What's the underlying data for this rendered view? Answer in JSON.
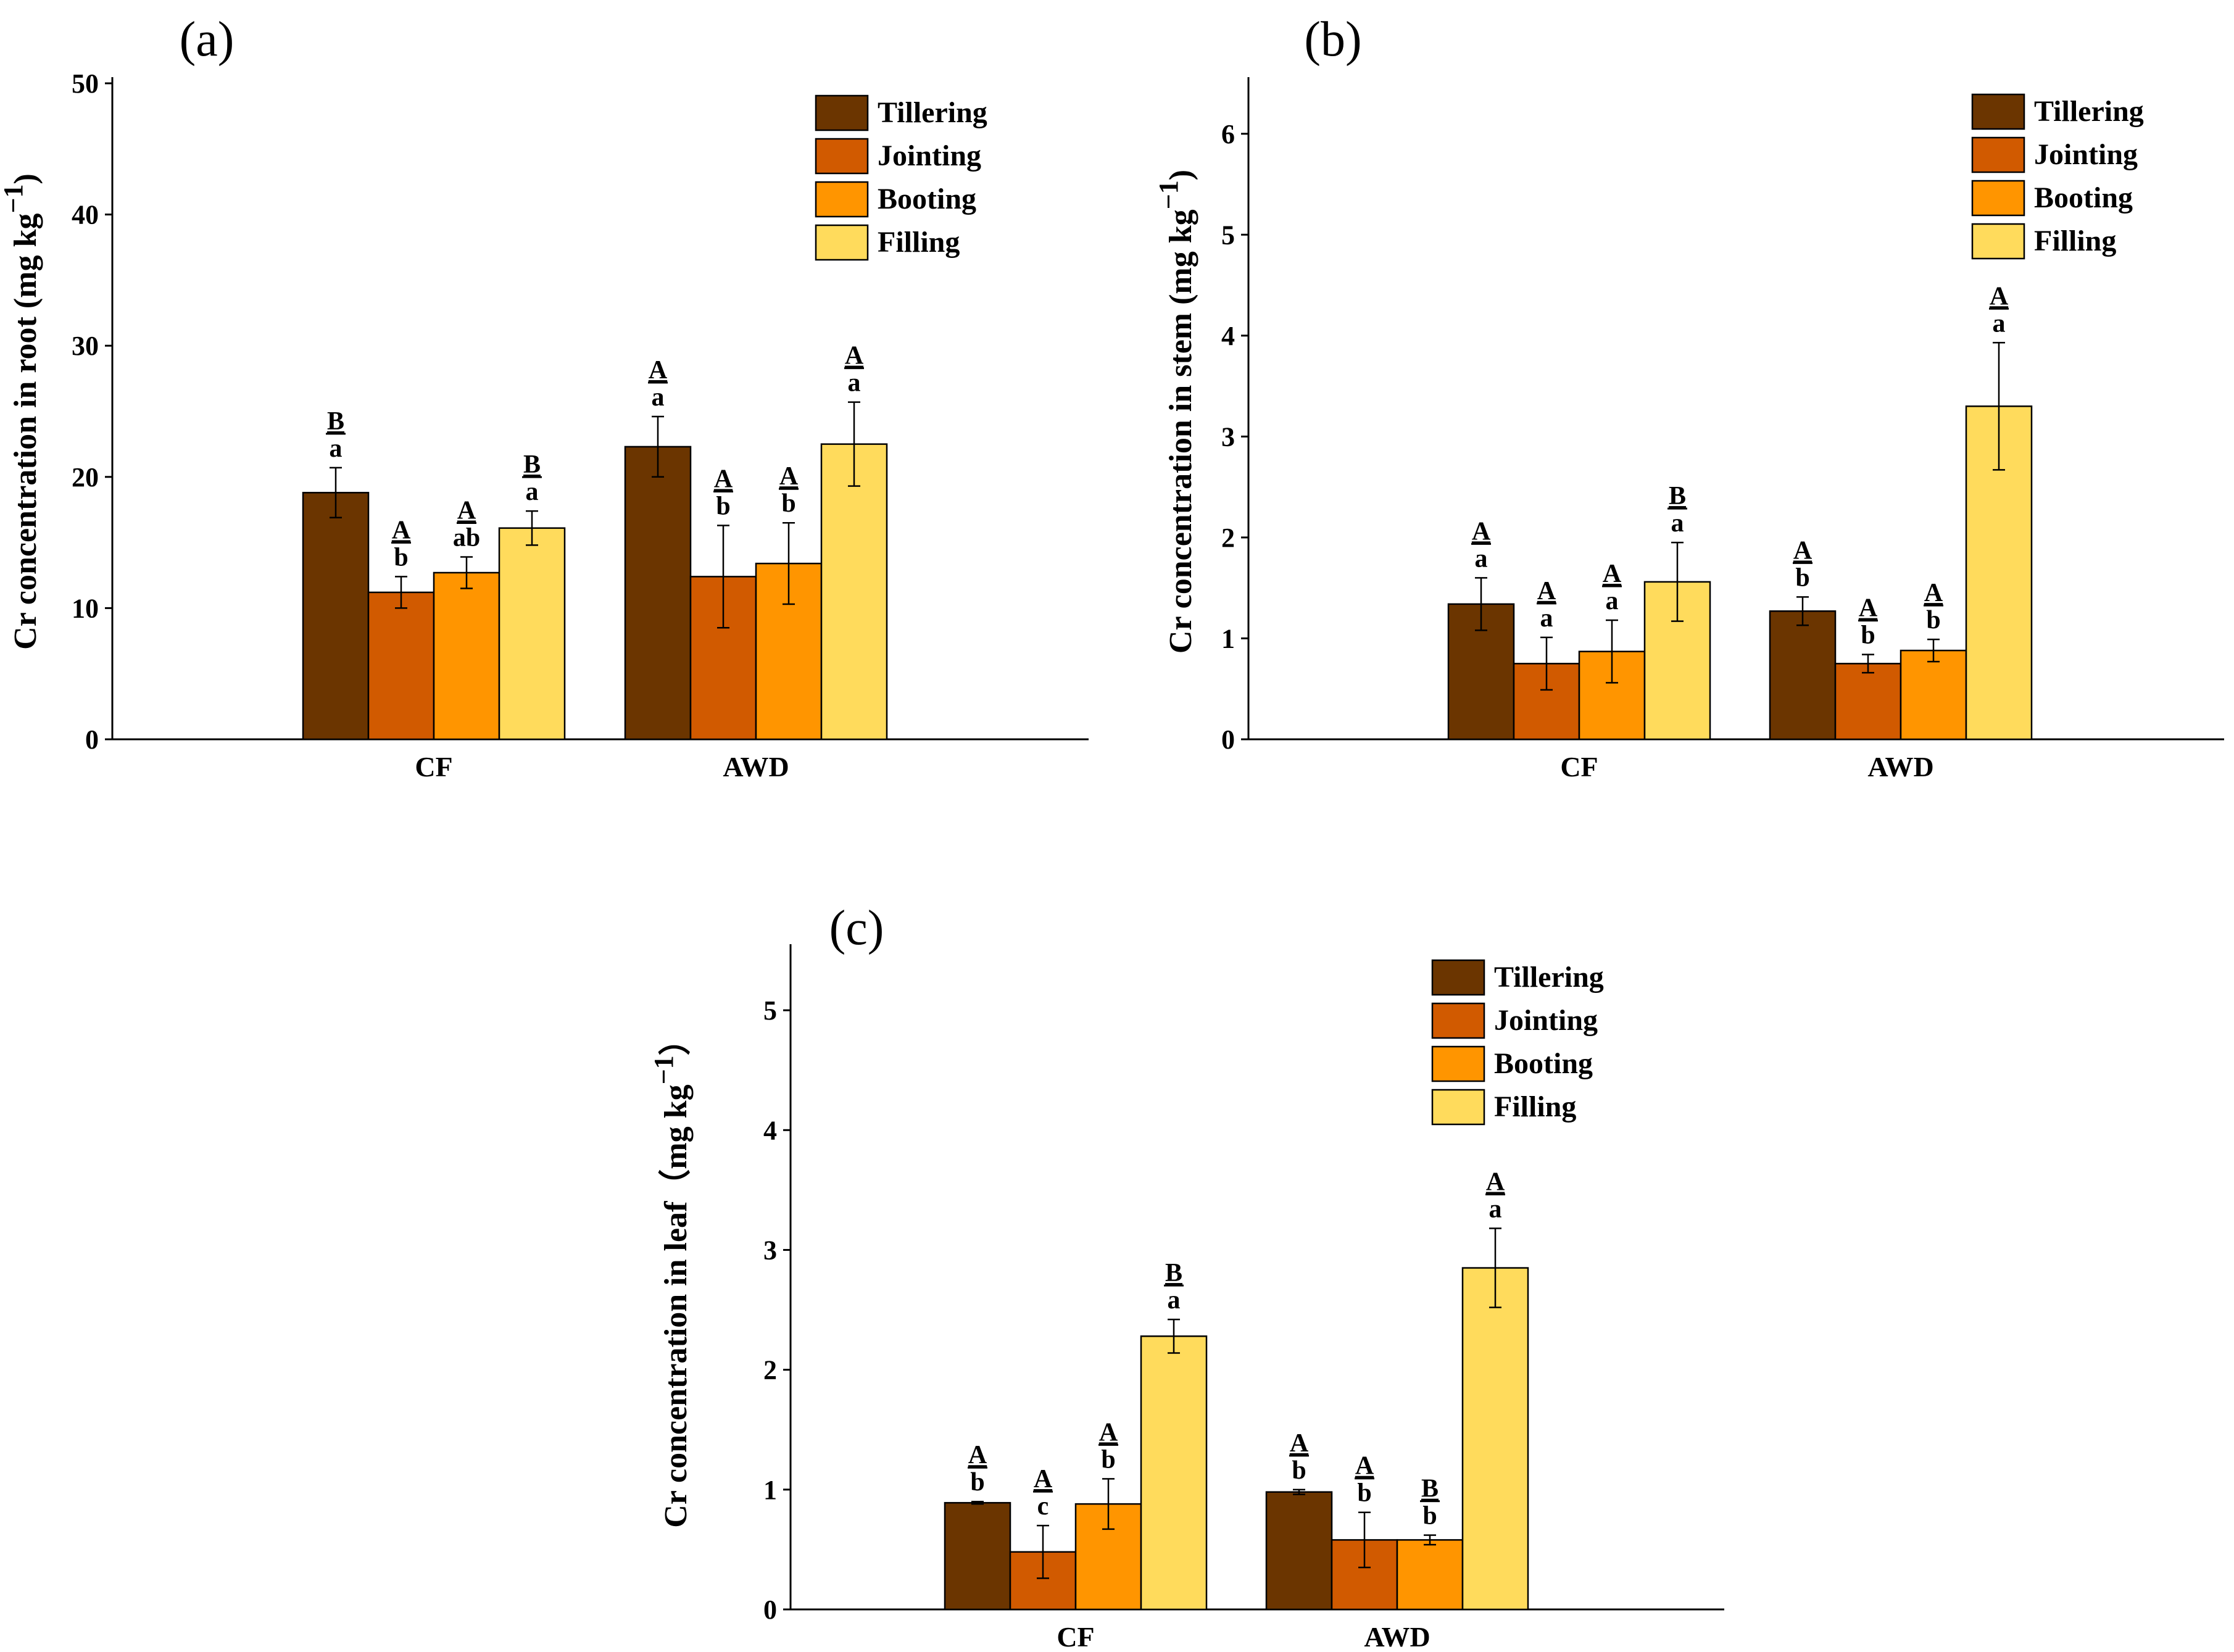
{
  "figure": {
    "panels_order": [
      "a",
      "b",
      "c"
    ]
  },
  "colors": {
    "Tillering": "#6B3500",
    "Jointing": "#D15A00",
    "Booting": "#FF9500",
    "Filling": "#FFDB5C",
    "axis": "#000000"
  },
  "chart_data": [
    {
      "type": "bar",
      "panel_tag": "(a)",
      "ylabel": "Cr concentration in root (mg kg⁻¹)",
      "ylabel_main": "Cr concentration in root (mg kg",
      "ylabel_sup": "−1",
      "ylabel_close": ")",
      "xlabel": "",
      "categories": [
        "CF",
        "AWD"
      ],
      "ylim": [
        0,
        50
      ],
      "yticks": [
        "0",
        "10",
        "20",
        "30",
        "40",
        "50"
      ],
      "legend": [
        "Tillering",
        "Jointing",
        "Booting",
        "Filling"
      ],
      "legend_position": "top-right",
      "series": [
        {
          "name": "Tillering",
          "values": [
            18.8,
            22.3
          ],
          "errors": [
            1.9,
            2.3
          ],
          "upper_letters": [
            "B",
            "A"
          ],
          "lower_letters": [
            "a",
            "a"
          ]
        },
        {
          "name": "Jointing",
          "values": [
            11.2,
            12.4
          ],
          "errors": [
            1.2,
            3.9
          ],
          "upper_letters": [
            "A",
            "A"
          ],
          "lower_letters": [
            "b",
            "b"
          ]
        },
        {
          "name": "Booting",
          "values": [
            12.7,
            13.4
          ],
          "errors": [
            1.2,
            3.1
          ],
          "upper_letters": [
            "A",
            "A"
          ],
          "lower_letters": [
            "ab",
            "b"
          ]
        },
        {
          "name": "Filling",
          "values": [
            16.1,
            22.5
          ],
          "errors": [
            1.3,
            3.2
          ],
          "upper_letters": [
            "B",
            "A"
          ],
          "lower_letters": [
            "a",
            "a"
          ]
        }
      ]
    },
    {
      "type": "bar",
      "panel_tag": "(b)",
      "ylabel": "Cr concentration in stem (mg kg⁻¹)",
      "ylabel_main": "Cr concentration in stem (mg kg",
      "ylabel_sup": "−1",
      "ylabel_close": ")",
      "xlabel": "",
      "categories": [
        "CF",
        "AWD"
      ],
      "ylim": [
        0,
        6.5
      ],
      "yticks": [
        "0",
        "1",
        "2",
        "3",
        "4",
        "5",
        "6"
      ],
      "legend": [
        "Tillering",
        "Jointing",
        "Booting",
        "Filling"
      ],
      "legend_position": "top-right",
      "series": [
        {
          "name": "Tillering",
          "values": [
            1.34,
            1.27
          ],
          "errors": [
            0.26,
            0.14
          ],
          "upper_letters": [
            "A",
            "A"
          ],
          "lower_letters": [
            "a",
            "b"
          ]
        },
        {
          "name": "Jointing",
          "values": [
            0.75,
            0.75
          ],
          "errors": [
            0.26,
            0.09
          ],
          "upper_letters": [
            "A",
            "A"
          ],
          "lower_letters": [
            "a",
            "b"
          ]
        },
        {
          "name": "Booting",
          "values": [
            0.87,
            0.88
          ],
          "errors": [
            0.31,
            0.11
          ],
          "upper_letters": [
            "A",
            "A"
          ],
          "lower_letters": [
            "a",
            "b"
          ]
        },
        {
          "name": "Filling",
          "values": [
            1.56,
            3.3
          ],
          "errors": [
            0.39,
            0.63
          ],
          "upper_letters": [
            "B",
            "A"
          ],
          "lower_letters": [
            "a",
            "a"
          ]
        }
      ]
    },
    {
      "type": "bar",
      "panel_tag": "(c)",
      "ylabel": "Cr concentration in leaf（mg kg⁻¹）",
      "ylabel_main": "Cr concentration in leaf（mg kg",
      "ylabel_sup": "−1",
      "ylabel_close": "）",
      "xlabel": "",
      "categories": [
        "CF",
        "AWD"
      ],
      "ylim": [
        0,
        5.5
      ],
      "yticks": [
        "0",
        "1",
        "2",
        "3",
        "4",
        "5"
      ],
      "legend": [
        "Tillering",
        "Jointing",
        "Booting",
        "Filling"
      ],
      "legend_position": "top-right",
      "series": [
        {
          "name": "Tillering",
          "values": [
            0.89,
            0.98
          ],
          "errors": [
            0.01,
            0.02
          ],
          "upper_letters": [
            "A",
            "A"
          ],
          "lower_letters": [
            "b",
            "b"
          ]
        },
        {
          "name": "Jointing",
          "values": [
            0.48,
            0.58
          ],
          "errors": [
            0.22,
            0.23
          ],
          "upper_letters": [
            "A",
            "A"
          ],
          "lower_letters": [
            "c",
            "b"
          ]
        },
        {
          "name": "Booting",
          "values": [
            0.88,
            0.58
          ],
          "errors": [
            0.21,
            0.04
          ],
          "upper_letters": [
            "A",
            "B"
          ],
          "lower_letters": [
            "b",
            "b"
          ]
        },
        {
          "name": "Filling",
          "values": [
            2.28,
            2.85
          ],
          "errors": [
            0.14,
            0.33
          ],
          "upper_letters": [
            "B",
            "A"
          ],
          "lower_letters": [
            "a",
            "a"
          ]
        }
      ]
    }
  ]
}
